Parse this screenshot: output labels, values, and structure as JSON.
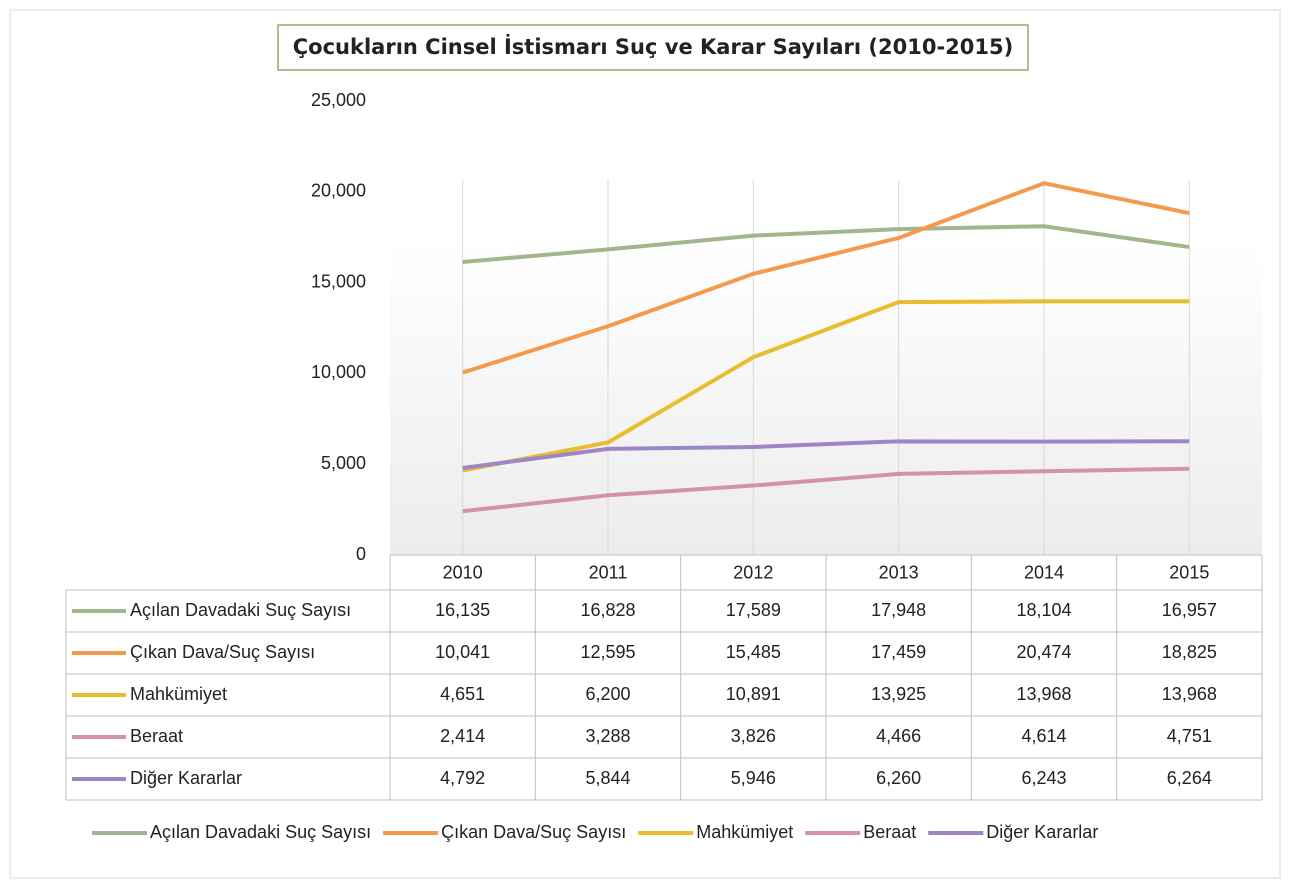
{
  "chart_data": {
    "type": "line",
    "title": "Çocukların Cinsel İstismarı Suç ve Karar Sayıları (2010-2015)",
    "categories": [
      "2010",
      "2011",
      "2012",
      "2013",
      "2014",
      "2015"
    ],
    "series": [
      {
        "name": "Açılan Davadaki Suç Sayısı",
        "color": "#a3b58e",
        "values": [
          16135,
          16828,
          17589,
          17948,
          18104,
          16957
        ],
        "value_labels": [
          "16,135",
          "16,828",
          "17,589",
          "17,948",
          "18,104",
          "16,957"
        ]
      },
      {
        "name": "Çıkan Dava/Suç Sayısı",
        "color": "#f39a4c",
        "values": [
          10041,
          12595,
          15485,
          17459,
          20474,
          18825
        ],
        "value_labels": [
          "10,041",
          "12,595",
          "15,485",
          "17,459",
          "20,474",
          "18,825"
        ]
      },
      {
        "name": "Mahkümiyet",
        "color": "#e8bd2e",
        "values": [
          4651,
          6200,
          10891,
          13925,
          13968,
          13968
        ],
        "value_labels": [
          "4,651",
          "6,200",
          "10,891",
          "13,925",
          "13,968",
          "13,968"
        ]
      },
      {
        "name": "Beraat",
        "color": "#d393a3",
        "values": [
          2414,
          3288,
          3826,
          4466,
          4614,
          4751
        ],
        "value_labels": [
          "2,414",
          "3,288",
          "3,826",
          "4,466",
          "4,614",
          "4,751"
        ]
      },
      {
        "name": "Diğer Kararlar",
        "color": "#9e86c6",
        "values": [
          4792,
          5844,
          5946,
          6260,
          6243,
          6264
        ],
        "value_labels": [
          "4,792",
          "5,844",
          "5,946",
          "6,260",
          "6,243",
          "6,264"
        ]
      }
    ],
    "ylim": [
      0,
      25000
    ],
    "yticks": [
      0,
      {
        "value": 5000,
        "label": "5,000"
      },
      {
        "value": 10000,
        "label": "10,000"
      },
      {
        "value": 15000,
        "label": "15,000"
      },
      {
        "value": 20000,
        "label": "20,000"
      },
      {
        "value": 25000,
        "label": "25,000"
      }
    ],
    "grid": "vertical",
    "legend": "bottom"
  }
}
